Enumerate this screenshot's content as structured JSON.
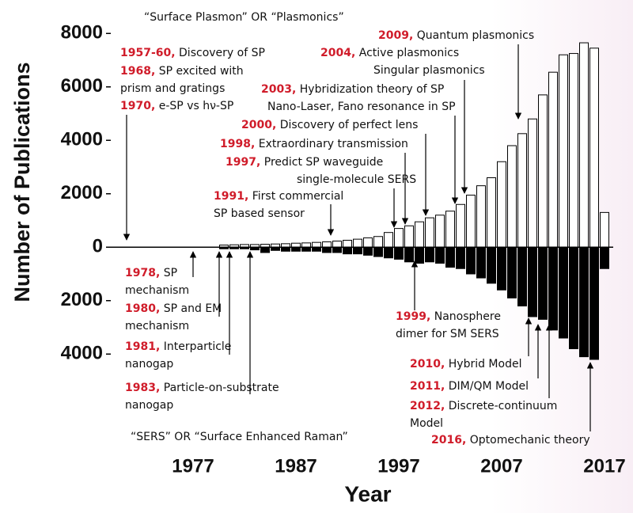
{
  "chart_data": {
    "type": "bar",
    "x_label": "Year",
    "y_label": "Number of Publications",
    "xlim": [
      1969,
      2019
    ],
    "xticks": [
      1977,
      1987,
      1997,
      2007,
      2017
    ],
    "ylim": [
      -5000,
      8600
    ],
    "yticks": [
      8000,
      6000,
      4000,
      2000,
      0,
      {
        "value": -2000,
        "label": "2000"
      },
      {
        "value": -4000,
        "label": "4000"
      }
    ],
    "x": [
      1980,
      1981,
      1982,
      1983,
      1984,
      1985,
      1986,
      1987,
      1988,
      1989,
      1990,
      1991,
      1992,
      1993,
      1994,
      1995,
      1996,
      1997,
      1998,
      1999,
      2000,
      2001,
      2002,
      2003,
      2004,
      2005,
      2006,
      2007,
      2008,
      2009,
      2010,
      2011,
      2012,
      2013,
      2014,
      2015,
      2016,
      2017
    ],
    "series": [
      {
        "name": "“Surface Plasmon” OR “Plasmonics”",
        "color": "#ffffff",
        "values": [
          80,
          90,
          100,
          100,
          110,
          120,
          130,
          150,
          160,
          180,
          200,
          230,
          260,
          300,
          350,
          400,
          550,
          700,
          800,
          950,
          1100,
          1200,
          1350,
          1600,
          1950,
          2300,
          2600,
          3200,
          3800,
          4250,
          4800,
          5700,
          6550,
          7200,
          7250,
          7650,
          7450,
          1300
        ]
      },
      {
        "name": "“SERS” OR “Surface Enhanced Raman”",
        "color": "#000000",
        "values": [
          -60,
          -60,
          -60,
          -100,
          -200,
          -120,
          -150,
          -150,
          -150,
          -150,
          -200,
          -200,
          -250,
          -250,
          -300,
          -350,
          -400,
          -450,
          -550,
          -600,
          -550,
          -600,
          -750,
          -800,
          -1000,
          -1150,
          -1350,
          -1600,
          -1900,
          -2200,
          -2600,
          -2700,
          -3100,
          -3400,
          -3800,
          -4100,
          -4200,
          -800
        ]
      }
    ],
    "annotations": [
      {
        "lines": [
          {
            "year": "1957-60,",
            "text": "Discovery of SP"
          }
        ]
      },
      {
        "lines": [
          {
            "year": "1968,",
            "text": "SP excited with"
          },
          {
            "text": "prism and gratings"
          }
        ]
      },
      {
        "lines": [
          {
            "year": "1970,",
            "text": "e-SP vs hν-SP"
          }
        ]
      },
      {
        "lines": [
          {
            "year": "2009,",
            "text": "Quantum plasmonics"
          }
        ]
      },
      {
        "lines": [
          {
            "year": "2004,",
            "text": "Active plasmonics"
          },
          {
            "text": "Singular plasmonics"
          }
        ]
      },
      {
        "lines": [
          {
            "year": "2003,",
            "text": "Hybridization theory of SP"
          },
          {
            "text": "Nano-Laser, Fano resonance in SP"
          }
        ]
      },
      {
        "lines": [
          {
            "year": "2000,",
            "text": "Discovery of perfect lens"
          }
        ]
      },
      {
        "lines": [
          {
            "year": "1998,",
            "text": "Extraordinary transmission"
          }
        ]
      },
      {
        "lines": [
          {
            "year": "1997,",
            "text": "Predict SP waveguide"
          },
          {
            "text": "single-molecule SERS"
          }
        ]
      },
      {
        "lines": [
          {
            "year": "1991,",
            "text": "First commercial"
          },
          {
            "text": "SP based sensor"
          }
        ]
      },
      {
        "lines": [
          {
            "year": "1978,",
            "text": "SP"
          },
          {
            "text": "mechanism"
          }
        ]
      },
      {
        "lines": [
          {
            "year": "1980,",
            "text": "SP and EM"
          },
          {
            "text": "mechanism"
          }
        ]
      },
      {
        "lines": [
          {
            "year": "1981,",
            "text": "Interparticle"
          },
          {
            "text": "nanogap"
          }
        ]
      },
      {
        "lines": [
          {
            "year": "1983,",
            "text": "Particle-on-substrate"
          },
          {
            "text": "nanogap"
          }
        ]
      },
      {
        "lines": [
          {
            "year": "1999,",
            "text": "Nanosphere"
          },
          {
            "text": "dimer for SM SERS"
          }
        ]
      },
      {
        "lines": [
          {
            "year": "2010,",
            "text": "Hybrid Model"
          }
        ]
      },
      {
        "lines": [
          {
            "year": "2011,",
            "text": "DIM/QM Model"
          }
        ]
      },
      {
        "lines": [
          {
            "year": "2012,",
            "text": "Discrete-continuum"
          },
          {
            "text": "Model"
          }
        ]
      },
      {
        "lines": [
          {
            "year": "2016,",
            "text": "Optomechanic theory"
          }
        ]
      }
    ]
  }
}
